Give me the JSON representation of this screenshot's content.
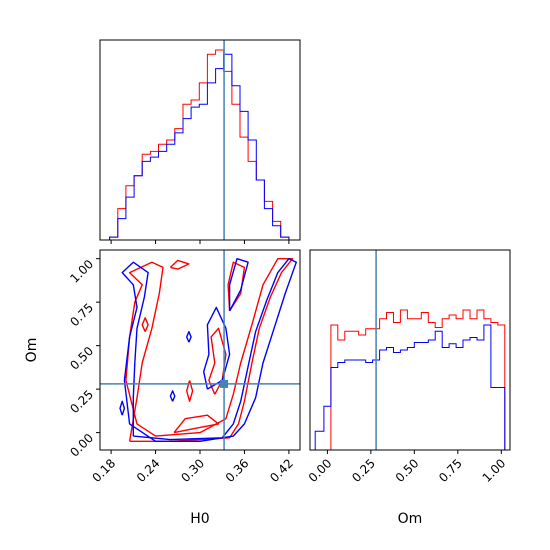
{
  "chart_data": {
    "type": "corner",
    "parameters": [
      "H0",
      "Om"
    ],
    "truth": {
      "H0": 0.3325,
      "Om": 0.28
    },
    "truth_color": "#4682b4",
    "series": [
      {
        "color": "#ff0000"
      },
      {
        "color": "#0000ff"
      }
    ],
    "axis_labels": {
      "x_h0": "H0",
      "x_om": "Om",
      "y_om": "Om"
    },
    "h0_ticks": [
      "0.18",
      "0.24",
      "0.30",
      "0.36",
      "0.42"
    ],
    "om_ticks": [
      "0.00",
      "0.25",
      "0.50",
      "0.75",
      "1.00"
    ],
    "h0_range": [
      0.165,
      0.435
    ],
    "om_range": [
      -0.1,
      1.05
    ],
    "hist_h0": {
      "bins": [
        0.178,
        0.189,
        0.2,
        0.211,
        0.222,
        0.233,
        0.244,
        0.255,
        0.266,
        0.277,
        0.288,
        0.299,
        0.31,
        0.321,
        0.332,
        0.343,
        0.354,
        0.365,
        0.376,
        0.387,
        0.398,
        0.409,
        0.42
      ],
      "red": [
        2,
        22,
        38,
        45,
        60,
        62,
        67,
        70,
        78,
        95,
        98,
        110,
        130,
        133,
        118,
        95,
        72,
        55,
        42,
        27,
        13,
        2
      ],
      "blue": [
        2,
        15,
        30,
        45,
        55,
        58,
        62,
        67,
        75,
        85,
        93,
        95,
        110,
        120,
        130,
        108,
        90,
        70,
        42,
        22,
        10,
        2
      ],
      "ymax": 140
    },
    "hist_om": {
      "bins": [
        -0.07,
        -0.02,
        0.02,
        0.06,
        0.1,
        0.14,
        0.18,
        0.22,
        0.26,
        0.3,
        0.34,
        0.38,
        0.42,
        0.46,
        0.5,
        0.54,
        0.58,
        0.62,
        0.66,
        0.7,
        0.74,
        0.78,
        0.82,
        0.86,
        0.9,
        0.94,
        0.98,
        1.02
      ],
      "red": [
        0,
        0,
        1.0,
        0.88,
        0.95,
        0.95,
        0.92,
        0.97,
        0.97,
        1.05,
        1.1,
        1.02,
        1.12,
        1.05,
        1.05,
        1.1,
        1.02,
        0.98,
        1.05,
        1.08,
        1.05,
        1.12,
        1.05,
        1.12,
        1.05,
        1.02,
        1.0
      ],
      "blue": [
        0.15,
        0.35,
        0.66,
        0.7,
        0.72,
        0.72,
        0.72,
        0.7,
        0.72,
        0.8,
        0.82,
        0.78,
        0.8,
        0.82,
        0.86,
        0.86,
        0.88,
        0.95,
        0.82,
        0.85,
        0.82,
        0.88,
        0.9,
        0.88,
        1.0,
        0.5,
        0.5
      ],
      "ymax": 1.6
    },
    "contours": [
      {
        "series": "red",
        "points": [
          [
            0.205,
            -0.05
          ],
          [
            0.26,
            -0.05
          ],
          [
            0.34,
            -0.03
          ],
          [
            0.352,
            0.05
          ],
          [
            0.36,
            0.18
          ],
          [
            0.37,
            0.4
          ],
          [
            0.38,
            0.6
          ],
          [
            0.395,
            0.78
          ],
          [
            0.41,
            0.92
          ],
          [
            0.425,
            1.0
          ],
          [
            0.405,
            1.0
          ],
          [
            0.385,
            0.85
          ],
          [
            0.37,
            0.62
          ],
          [
            0.355,
            0.4
          ],
          [
            0.345,
            0.22
          ],
          [
            0.335,
            0.08
          ],
          [
            0.3,
            0.0
          ],
          [
            0.24,
            -0.02
          ],
          [
            0.215,
            0.05
          ],
          [
            0.2,
            0.3
          ],
          [
            0.205,
            0.55
          ],
          [
            0.212,
            0.75
          ],
          [
            0.222,
            0.85
          ],
          [
            0.205,
            0.92
          ],
          [
            0.235,
            0.98
          ],
          [
            0.25,
            0.95
          ],
          [
            0.245,
            0.8
          ],
          [
            0.235,
            0.6
          ],
          [
            0.222,
            0.4
          ],
          [
            0.215,
            0.2
          ],
          [
            0.205,
            -0.05
          ]
        ]
      },
      {
        "series": "red",
        "points": [
          [
            0.32,
            0.22
          ],
          [
            0.33,
            0.3
          ],
          [
            0.335,
            0.45
          ],
          [
            0.325,
            0.6
          ],
          [
            0.315,
            0.55
          ],
          [
            0.32,
            0.4
          ],
          [
            0.312,
            0.3
          ],
          [
            0.32,
            0.22
          ]
        ]
      },
      {
        "series": "red",
        "points": [
          [
            0.265,
            0.0
          ],
          [
            0.3,
            0.03
          ],
          [
            0.325,
            0.05
          ],
          [
            0.31,
            0.1
          ],
          [
            0.28,
            0.08
          ],
          [
            0.265,
            0.0
          ]
        ]
      },
      {
        "series": "red",
        "points": [
          [
            0.34,
            0.7
          ],
          [
            0.355,
            0.8
          ],
          [
            0.36,
            0.95
          ],
          [
            0.345,
            0.98
          ],
          [
            0.338,
            0.85
          ],
          [
            0.34,
            0.7
          ]
        ]
      },
      {
        "series": "red",
        "points": [
          [
            0.26,
            0.95
          ],
          [
            0.27,
            0.99
          ],
          [
            0.285,
            0.97
          ],
          [
            0.27,
            0.94
          ],
          [
            0.26,
            0.95
          ]
        ]
      },
      {
        "series": "red",
        "points": [
          [
            0.286,
            0.3
          ],
          [
            0.29,
            0.24
          ],
          [
            0.286,
            0.18
          ],
          [
            0.282,
            0.24
          ],
          [
            0.286,
            0.3
          ]
        ]
      },
      {
        "series": "red",
        "points": [
          [
            0.226,
            0.58
          ],
          [
            0.23,
            0.62
          ],
          [
            0.226,
            0.66
          ],
          [
            0.222,
            0.62
          ],
          [
            0.226,
            0.58
          ]
        ]
      },
      {
        "series": "blue",
        "points": [
          [
            0.21,
            -0.02
          ],
          [
            0.26,
            -0.04
          ],
          [
            0.33,
            -0.03
          ],
          [
            0.345,
            0.05
          ],
          [
            0.355,
            0.18
          ],
          [
            0.365,
            0.38
          ],
          [
            0.375,
            0.58
          ],
          [
            0.39,
            0.76
          ],
          [
            0.405,
            0.92
          ],
          [
            0.42,
            1.0
          ],
          [
            0.43,
            0.98
          ],
          [
            0.415,
            0.8
          ],
          [
            0.4,
            0.6
          ],
          [
            0.385,
            0.4
          ],
          [
            0.375,
            0.2
          ],
          [
            0.36,
            0.05
          ],
          [
            0.345,
            -0.02
          ],
          [
            0.3,
            -0.05
          ],
          [
            0.24,
            -0.05
          ],
          [
            0.205,
            0.05
          ],
          [
            0.198,
            0.3
          ],
          [
            0.205,
            0.55
          ],
          [
            0.215,
            0.72
          ],
          [
            0.21,
            0.85
          ],
          [
            0.195,
            0.92
          ],
          [
            0.21,
            0.98
          ],
          [
            0.23,
            0.92
          ],
          [
            0.225,
            0.78
          ],
          [
            0.215,
            0.6
          ],
          [
            0.212,
            0.4
          ],
          [
            0.21,
            0.2
          ],
          [
            0.21,
            -0.02
          ]
        ]
      },
      {
        "series": "blue",
        "points": [
          [
            0.31,
            0.25
          ],
          [
            0.33,
            0.3
          ],
          [
            0.34,
            0.45
          ],
          [
            0.335,
            0.6
          ],
          [
            0.322,
            0.72
          ],
          [
            0.31,
            0.62
          ],
          [
            0.312,
            0.45
          ],
          [
            0.305,
            0.35
          ],
          [
            0.31,
            0.25
          ]
        ]
      },
      {
        "series": "blue",
        "points": [
          [
            0.34,
            0.7
          ],
          [
            0.355,
            0.82
          ],
          [
            0.365,
            0.98
          ],
          [
            0.35,
            1.0
          ],
          [
            0.34,
            0.85
          ],
          [
            0.34,
            0.7
          ]
        ]
      },
      {
        "series": "blue",
        "points": [
          [
            0.195,
            0.1
          ],
          [
            0.198,
            0.14
          ],
          [
            0.195,
            0.18
          ],
          [
            0.192,
            0.14
          ],
          [
            0.195,
            0.1
          ]
        ]
      },
      {
        "series": "blue",
        "points": [
          [
            0.263,
            0.18
          ],
          [
            0.266,
            0.21
          ],
          [
            0.263,
            0.24
          ],
          [
            0.26,
            0.21
          ],
          [
            0.263,
            0.18
          ]
        ]
      },
      {
        "series": "blue",
        "points": [
          [
            0.285,
            0.52
          ],
          [
            0.288,
            0.55
          ],
          [
            0.285,
            0.58
          ],
          [
            0.282,
            0.55
          ],
          [
            0.285,
            0.52
          ]
        ]
      }
    ]
  }
}
